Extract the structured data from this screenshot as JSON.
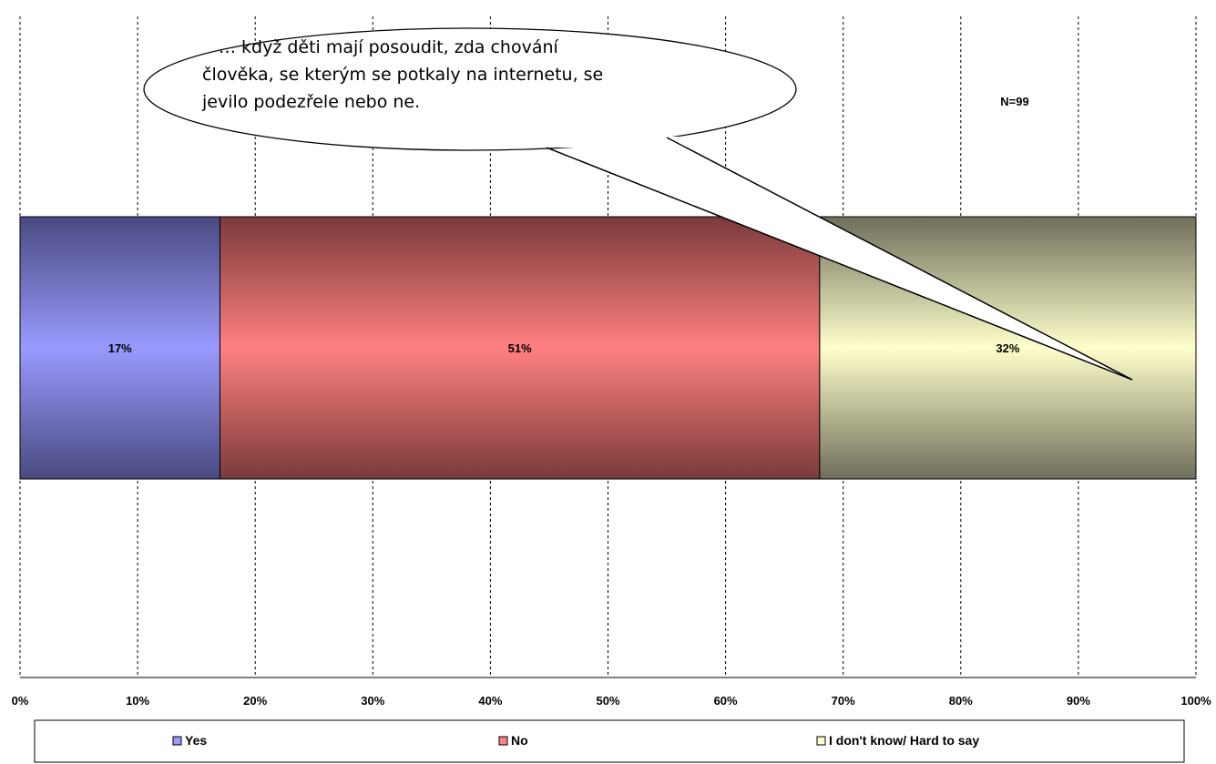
{
  "chart_data": {
    "type": "bar",
    "orientation": "horizontal",
    "stacked": true,
    "percent_stacked": true,
    "categories": [
      ""
    ],
    "series": [
      {
        "name": "Yes",
        "values": [
          17
        ],
        "label": "17%",
        "color": "#9999ff",
        "shade": "#4a4a80"
      },
      {
        "name": "No",
        "values": [
          51
        ],
        "label": "51%",
        "color": "#ff8080",
        "shade": "#7a3a3a"
      },
      {
        "name": "I don't know/ Hard to say",
        "values": [
          32
        ],
        "label": "32%",
        "color": "#ffffcc",
        "shade": "#6e6e5a"
      }
    ],
    "xlim": [
      0,
      100
    ],
    "x_ticks": [
      "0%",
      "10%",
      "20%",
      "30%",
      "40%",
      "50%",
      "60%",
      "70%",
      "80%",
      "90%",
      "100%"
    ],
    "grid": "vertical dashed",
    "legend_position": "bottom",
    "annotations": {
      "sample_size": "N=99",
      "callout_lines": [
        "… když děti mají posoudit, zda chování",
        "člověka, se kterým se potkaly na internetu, se",
        "jevilo podezřele nebo ne."
      ]
    }
  }
}
